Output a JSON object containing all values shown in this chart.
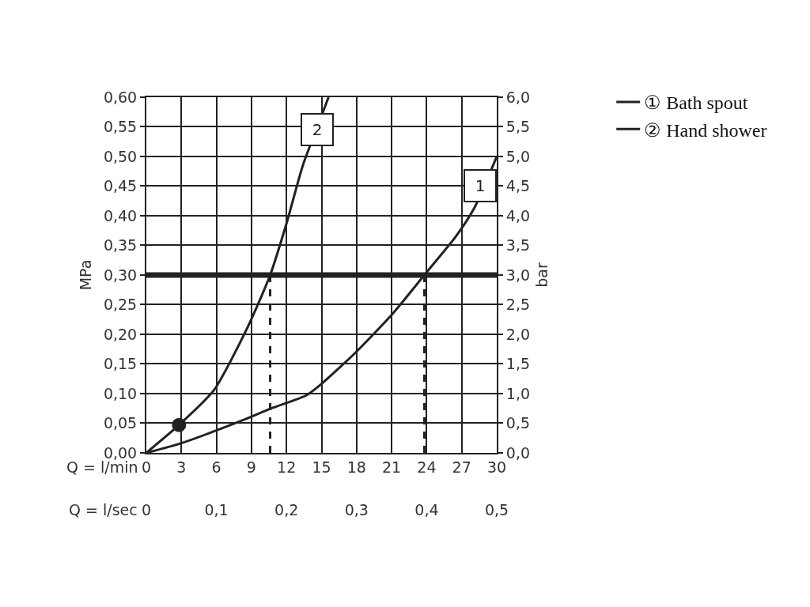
{
  "chart_data": {
    "type": "line",
    "xlabel": "Q = l/min",
    "x2label": "Q = l/sec",
    "ylabel": "MPa",
    "y2label": "bar",
    "xlim": [
      0,
      30
    ],
    "xticks": [
      0,
      3,
      6,
      9,
      12,
      15,
      18,
      21,
      24,
      27,
      30
    ],
    "x2lim": [
      0,
      0.5
    ],
    "x2ticks": [
      0,
      {
        "value": 0.1,
        "label": "0,1"
      },
      {
        "value": 0.2,
        "label": "0,2"
      },
      {
        "value": 0.3,
        "label": "0,3"
      },
      {
        "value": 0.4,
        "label": "0,4"
      },
      {
        "value": 0.5,
        "label": "0,5"
      }
    ],
    "ylim": [
      0,
      0.6
    ],
    "yticks": [
      {
        "value": 0,
        "label": "0,00"
      },
      {
        "value": 0.05,
        "label": "0,05"
      },
      {
        "value": 0.1,
        "label": "0,10"
      },
      {
        "value": 0.15,
        "label": "0,15"
      },
      {
        "value": 0.2,
        "label": "0,20"
      },
      {
        "value": 0.25,
        "label": "0,25"
      },
      {
        "value": 0.3,
        "label": "0,30"
      },
      {
        "value": 0.35,
        "label": "0,35"
      },
      {
        "value": 0.4,
        "label": "0,40"
      },
      {
        "value": 0.45,
        "label": "0,45"
      },
      {
        "value": 0.5,
        "label": "0,50"
      },
      {
        "value": 0.55,
        "label": "0,55"
      },
      {
        "value": 0.6,
        "label": "0,60"
      }
    ],
    "y2lim": [
      0,
      6
    ],
    "y2ticks": [
      {
        "value": 0,
        "label": "0,0"
      },
      {
        "value": 0.5,
        "label": "0,5"
      },
      {
        "value": 1,
        "label": "1,0"
      },
      {
        "value": 1.5,
        "label": "1,5"
      },
      {
        "value": 2,
        "label": "2,0"
      },
      {
        "value": 2.5,
        "label": "2,5"
      },
      {
        "value": 3,
        "label": "3,0"
      },
      {
        "value": 3.5,
        "label": "3,5"
      },
      {
        "value": 4,
        "label": "4,0"
      },
      {
        "value": 4.5,
        "label": "4,5"
      },
      {
        "value": 5,
        "label": "5,0"
      },
      {
        "value": 5.5,
        "label": "5,5"
      },
      {
        "value": 6,
        "label": "6,0"
      }
    ],
    "grid": true,
    "legend": "top right",
    "marker": "none",
    "line_style": "solid",
    "series": [
      {
        "name": "① Bath spout",
        "color": "#222222",
        "x": [
          0,
          2.8,
          8,
          10.7,
          13.7,
          14.8,
          17.9,
          21.1,
          23.8,
          26.5,
          28.1,
          30
        ],
        "values": [
          0,
          0.015,
          0.053,
          0.075,
          0.097,
          0.113,
          0.169,
          0.235,
          0.3,
          0.365,
          0.414,
          0.5
        ]
      },
      {
        "name": "② Hand shower",
        "color": "#222222",
        "x": [
          0,
          2.8,
          5.8,
          8.7,
          10.6,
          12,
          13.4,
          15.1,
          15.6
        ],
        "values": [
          0,
          0.047,
          0.106,
          0.213,
          0.3,
          0.387,
          0.485,
          0.574,
          0.6
        ]
      },
      {
        "type": "scatter",
        "marker": "circle",
        "color": "#222222",
        "x": [
          2.8
        ],
        "values": [
          0.047
        ]
      },
      {
        "color": "#222222",
        "line_style": "dashed",
        "x": [
          10.6,
          10.6
        ],
        "values": [
          0,
          0.3
        ]
      },
      {
        "color": "#222222",
        "line_style": "dashed",
        "x": [
          23.8,
          23.8
        ],
        "values": [
          0,
          0.3
        ]
      }
    ],
    "ref_lines": [
      {
        "axis": "y",
        "value": 0.3,
        "color": "#222222"
      }
    ],
    "annotations": [
      {
        "text": "1",
        "x": 28.6,
        "y": 0.45
      },
      {
        "text": "2",
        "x": 14.6,
        "y": 0.545
      }
    ]
  }
}
